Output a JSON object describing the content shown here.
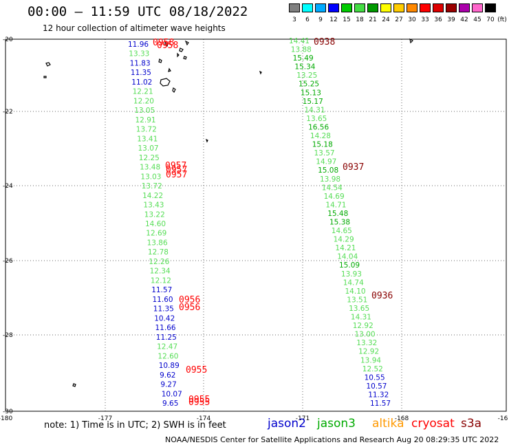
{
  "header": {
    "title": "00:00 – 11:59 UTC 08/18/2022",
    "subtitle": "12 hour collection of altimeter wave heights"
  },
  "colorbar": {
    "unit": "(ft)",
    "bins": [
      {
        "label": "3",
        "color": "#808080"
      },
      {
        "label": "6",
        "color": "#00ffff"
      },
      {
        "label": "9",
        "color": "#00aaff"
      },
      {
        "label": "12",
        "color": "#0000ff"
      },
      {
        "label": "15",
        "color": "#00cc00"
      },
      {
        "label": "18",
        "color": "#44dd44"
      },
      {
        "label": "21",
        "color": "#009900"
      },
      {
        "label": "24",
        "color": "#ffff00"
      },
      {
        "label": "27",
        "color": "#ffcc00"
      },
      {
        "label": "30",
        "color": "#ff8800"
      },
      {
        "label": "33",
        "color": "#ff0000"
      },
      {
        "label": "36",
        "color": "#dd0000"
      },
      {
        "label": "39",
        "color": "#990000"
      },
      {
        "label": "42",
        "color": "#aa00aa"
      },
      {
        "label": "45",
        "color": "#ff66cc"
      },
      {
        "label": "70",
        "color": "#000000"
      }
    ]
  },
  "axes": {
    "lon_labels": [
      "-180",
      "-177",
      "-174",
      "-171",
      "-168",
      "-16"
    ],
    "lat_labels": [
      "-20",
      "-22",
      "-24",
      "-26",
      "-28",
      "-30"
    ]
  },
  "palette": {
    "pass_a": "#55dd55",
    "pass_b": "#00aa00",
    "blue": "#0000cc",
    "red": "#ff0000",
    "darkred": "#880000"
  },
  "tracks": {
    "west": [
      {
        "t": "11.96",
        "c": "#0000cc"
      },
      {
        "t": "13.33",
        "c": "#55dd55"
      },
      {
        "t": "11.83",
        "c": "#0000cc"
      },
      {
        "t": "11.35",
        "c": "#0000cc"
      },
      {
        "t": "11.02",
        "c": "#0000cc"
      },
      {
        "t": "12.21",
        "c": "#55dd55"
      },
      {
        "t": "12.20",
        "c": "#55dd55"
      },
      {
        "t": "13.05",
        "c": "#55dd55"
      },
      {
        "t": "12.91",
        "c": "#55dd55"
      },
      {
        "t": "13.72",
        "c": "#55dd55"
      },
      {
        "t": "13.41",
        "c": "#55dd55"
      },
      {
        "t": "13.07",
        "c": "#55dd55"
      },
      {
        "t": "12.25",
        "c": "#55dd55"
      },
      {
        "t": "13.48",
        "c": "#55dd55"
      },
      {
        "t": "13.03",
        "c": "#55dd55"
      },
      {
        "t": "13.72",
        "c": "#55dd55"
      },
      {
        "t": "14.22",
        "c": "#55dd55"
      },
      {
        "t": "13.43",
        "c": "#55dd55"
      },
      {
        "t": "13.22",
        "c": "#55dd55"
      },
      {
        "t": "14.60",
        "c": "#55dd55"
      },
      {
        "t": "12.69",
        "c": "#55dd55"
      },
      {
        "t": "13.86",
        "c": "#55dd55"
      },
      {
        "t": "12.78",
        "c": "#55dd55"
      },
      {
        "t": "12.26",
        "c": "#55dd55"
      },
      {
        "t": "12.34",
        "c": "#55dd55"
      },
      {
        "t": "12.12",
        "c": "#55dd55"
      },
      {
        "t": "11.57",
        "c": "#0000cc"
      },
      {
        "t": "11.60",
        "c": "#0000cc"
      },
      {
        "t": "11.35",
        "c": "#0000cc"
      },
      {
        "t": "10.42",
        "c": "#0000cc"
      },
      {
        "t": "11.66",
        "c": "#0000cc"
      },
      {
        "t": "11.25",
        "c": "#0000cc"
      },
      {
        "t": "12.47",
        "c": "#55dd55"
      },
      {
        "t": "12.60",
        "c": "#55dd55"
      },
      {
        "t": "10.89",
        "c": "#0000cc"
      },
      {
        "t": "9.62",
        "c": "#0000cc"
      },
      {
        "t": "9.27",
        "c": "#0000cc"
      },
      {
        "t": "10.07",
        "c": "#0000cc"
      },
      {
        "t": "9.65",
        "c": "#0000cc"
      }
    ],
    "east": [
      {
        "t": "14.41",
        "c": "#55dd55"
      },
      {
        "t": "13.88",
        "c": "#55dd55"
      },
      {
        "t": "15.49",
        "c": "#00aa00"
      },
      {
        "t": "15.34",
        "c": "#00aa00"
      },
      {
        "t": "13.25",
        "c": "#55dd55"
      },
      {
        "t": "15.25",
        "c": "#00aa00"
      },
      {
        "t": "15.13",
        "c": "#00aa00"
      },
      {
        "t": "15.17",
        "c": "#00aa00"
      },
      {
        "t": "14.31",
        "c": "#55dd55"
      },
      {
        "t": "13.65",
        "c": "#55dd55"
      },
      {
        "t": "16.56",
        "c": "#00aa00"
      },
      {
        "t": "14.28",
        "c": "#55dd55"
      },
      {
        "t": "15.18",
        "c": "#00aa00"
      },
      {
        "t": "13.57",
        "c": "#55dd55"
      },
      {
        "t": "14.97",
        "c": "#55dd55"
      },
      {
        "t": "15.08",
        "c": "#00aa00"
      },
      {
        "t": "13.98",
        "c": "#55dd55"
      },
      {
        "t": "14.54",
        "c": "#55dd55"
      },
      {
        "t": "14.69",
        "c": "#55dd55"
      },
      {
        "t": "14.71",
        "c": "#55dd55"
      },
      {
        "t": "15.48",
        "c": "#00aa00"
      },
      {
        "t": "15.38",
        "c": "#00aa00"
      },
      {
        "t": "14.65",
        "c": "#55dd55"
      },
      {
        "t": "14.29",
        "c": "#55dd55"
      },
      {
        "t": "14.21",
        "c": "#55dd55"
      },
      {
        "t": "14.04",
        "c": "#55dd55"
      },
      {
        "t": "15.09",
        "c": "#00aa00"
      },
      {
        "t": "13.93",
        "c": "#55dd55"
      },
      {
        "t": "14.74",
        "c": "#55dd55"
      },
      {
        "t": "14.10",
        "c": "#55dd55"
      },
      {
        "t": "13.51",
        "c": "#55dd55"
      },
      {
        "t": "13.65",
        "c": "#55dd55"
      },
      {
        "t": "14.31",
        "c": "#55dd55"
      },
      {
        "t": "12.92",
        "c": "#55dd55"
      },
      {
        "t": "13.00",
        "c": "#55dd55"
      },
      {
        "t": "13.32",
        "c": "#55dd55"
      },
      {
        "t": "12.92",
        "c": "#55dd55"
      },
      {
        "t": "13.94",
        "c": "#55dd55"
      },
      {
        "t": "12.52",
        "c": "#55dd55"
      },
      {
        "t": "10.55",
        "c": "#0000cc"
      },
      {
        "t": "10.57",
        "c": "#0000cc"
      },
      {
        "t": "11.32",
        "c": "#0000cc"
      },
      {
        "t": "11.57",
        "c": "#0000cc"
      }
    ],
    "times": [
      {
        "t": "0958",
        "c": "#ff0000"
      },
      {
        "t": "0958",
        "c": "#ff0000"
      },
      {
        "t": "0957",
        "c": "#ff0000"
      },
      {
        "t": "0957",
        "c": "#ff0000"
      },
      {
        "t": "0957",
        "c": "#ff0000"
      },
      {
        "t": "0956",
        "c": "#ff0000"
      },
      {
        "t": "0956",
        "c": "#ff0000"
      },
      {
        "t": "0955",
        "c": "#ff0000"
      },
      {
        "t": "0955",
        "c": "#ff0000"
      },
      {
        "t": "0955",
        "c": "#ff0000"
      },
      {
        "t": "0938",
        "c": "#880000"
      },
      {
        "t": "0937",
        "c": "#880000"
      },
      {
        "t": "0936",
        "c": "#880000"
      }
    ]
  },
  "note": "note: 1) Time is in UTC; 2) SWH is in feet",
  "satellites": [
    {
      "name": "jason2",
      "color": "#0000cc"
    },
    {
      "name": "jason3",
      "color": "#00aa00"
    },
    {
      "name": "altika",
      "color": "#ff9900"
    },
    {
      "name": "cryosat",
      "color": "#ff0000"
    },
    {
      "name": "s3a",
      "color": "#880000"
    }
  ],
  "footer": "NOAA/NESDIS Center for Satellite Applications and Research   Aug 20 08:29:35 UTC 2022"
}
